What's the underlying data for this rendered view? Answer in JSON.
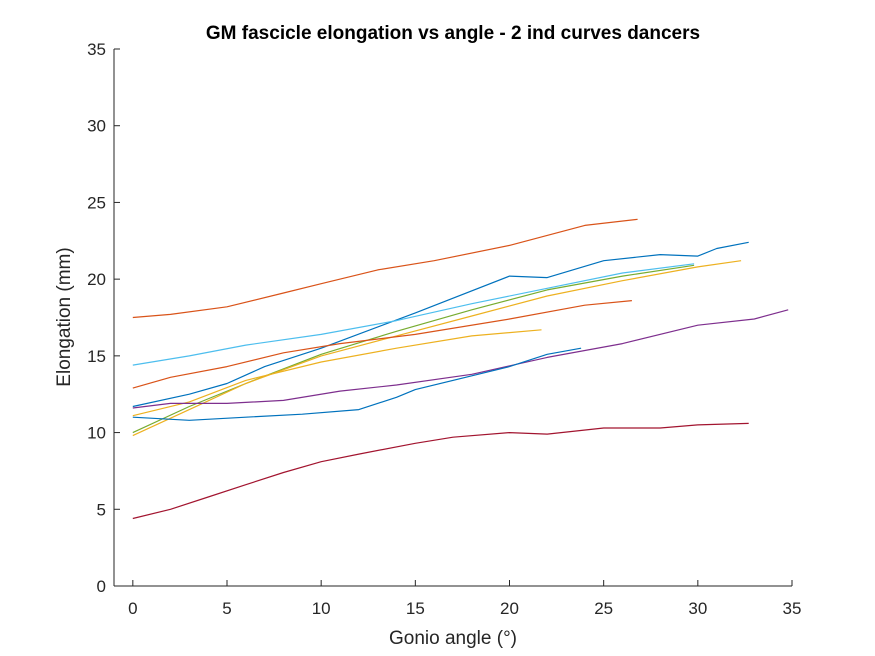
{
  "chart_data": {
    "type": "line",
    "title": "GM fascicle elongation vs angle - 2 ind curves dancers",
    "xlabel": "Gonio angle (°)",
    "ylabel": "Elongation (mm)",
    "xlim": [
      -1,
      35
    ],
    "ylim": [
      0,
      35
    ],
    "xticks": [
      0,
      5,
      10,
      15,
      20,
      25,
      30,
      35
    ],
    "yticks": [
      0,
      5,
      10,
      15,
      20,
      25,
      30,
      35
    ],
    "grid": false,
    "legend": "none",
    "series": [
      {
        "color": "#D95319",
        "x": [
          0,
          2,
          5,
          8,
          10,
          13,
          16,
          20,
          24,
          26.8
        ],
        "y": [
          17.5,
          17.7,
          18.2,
          19.1,
          19.7,
          20.6,
          21.2,
          22.2,
          23.5,
          23.9
        ]
      },
      {
        "color": "#0072BD",
        "x": [
          0,
          3,
          5,
          7,
          10,
          15,
          20,
          22,
          25,
          28,
          30,
          31,
          32.7
        ],
        "y": [
          11.7,
          12.5,
          13.2,
          14.3,
          15.5,
          17.8,
          20.2,
          20.1,
          21.2,
          21.6,
          21.5,
          22.0,
          22.4
        ]
      },
      {
        "color": "#4DBEEE",
        "x": [
          0,
          3,
          6,
          10,
          14,
          18,
          22,
          26,
          29.8
        ],
        "y": [
          14.4,
          15.0,
          15.7,
          16.4,
          17.3,
          18.4,
          19.4,
          20.4,
          21.0
        ]
      },
      {
        "color": "#77AC30",
        "x": [
          0,
          3,
          6,
          10,
          14,
          18,
          22,
          26,
          29.8
        ],
        "y": [
          10.0,
          11.7,
          13.2,
          15.1,
          16.6,
          18.0,
          19.3,
          20.2,
          20.9
        ]
      },
      {
        "color": "#EDB120",
        "x": [
          0,
          3,
          6,
          10,
          14,
          18,
          22,
          26,
          30,
          32.3
        ],
        "y": [
          9.8,
          11.5,
          13.2,
          15.0,
          16.3,
          17.6,
          18.9,
          19.9,
          20.8,
          21.2
        ]
      },
      {
        "color": "#D95319",
        "x": [
          0,
          2,
          5,
          8,
          11,
          15,
          20,
          24,
          26.5
        ],
        "y": [
          12.9,
          13.6,
          14.3,
          15.2,
          15.8,
          16.4,
          17.4,
          18.3,
          18.6
        ]
      },
      {
        "color": "#EDB120",
        "x": [
          0,
          3,
          6,
          10,
          14,
          18,
          21.7
        ],
        "y": [
          11.1,
          12.0,
          13.4,
          14.6,
          15.5,
          16.3,
          16.7
        ]
      },
      {
        "color": "#7E2F8E",
        "x": [
          0,
          2,
          5,
          8,
          11,
          14,
          18,
          22,
          26,
          30,
          33,
          34.8
        ],
        "y": [
          11.6,
          11.9,
          11.9,
          12.1,
          12.7,
          13.1,
          13.8,
          14.9,
          15.8,
          17.0,
          17.4,
          18.0
        ]
      },
      {
        "color": "#0072BD",
        "x": [
          0,
          3,
          6,
          9,
          12,
          14,
          15,
          18,
          20,
          22,
          23.8
        ],
        "y": [
          11.0,
          10.8,
          11.0,
          11.2,
          11.5,
          12.3,
          12.8,
          13.7,
          14.3,
          15.1,
          15.5
        ]
      },
      {
        "color": "#A2142F",
        "x": [
          0,
          2,
          4,
          6,
          8,
          10,
          12,
          15,
          17,
          20,
          22,
          25,
          28,
          30,
          32.7
        ],
        "y": [
          4.4,
          5.0,
          5.8,
          6.6,
          7.4,
          8.1,
          8.6,
          9.3,
          9.7,
          10.0,
          9.9,
          10.3,
          10.3,
          10.5,
          10.6
        ]
      }
    ]
  }
}
